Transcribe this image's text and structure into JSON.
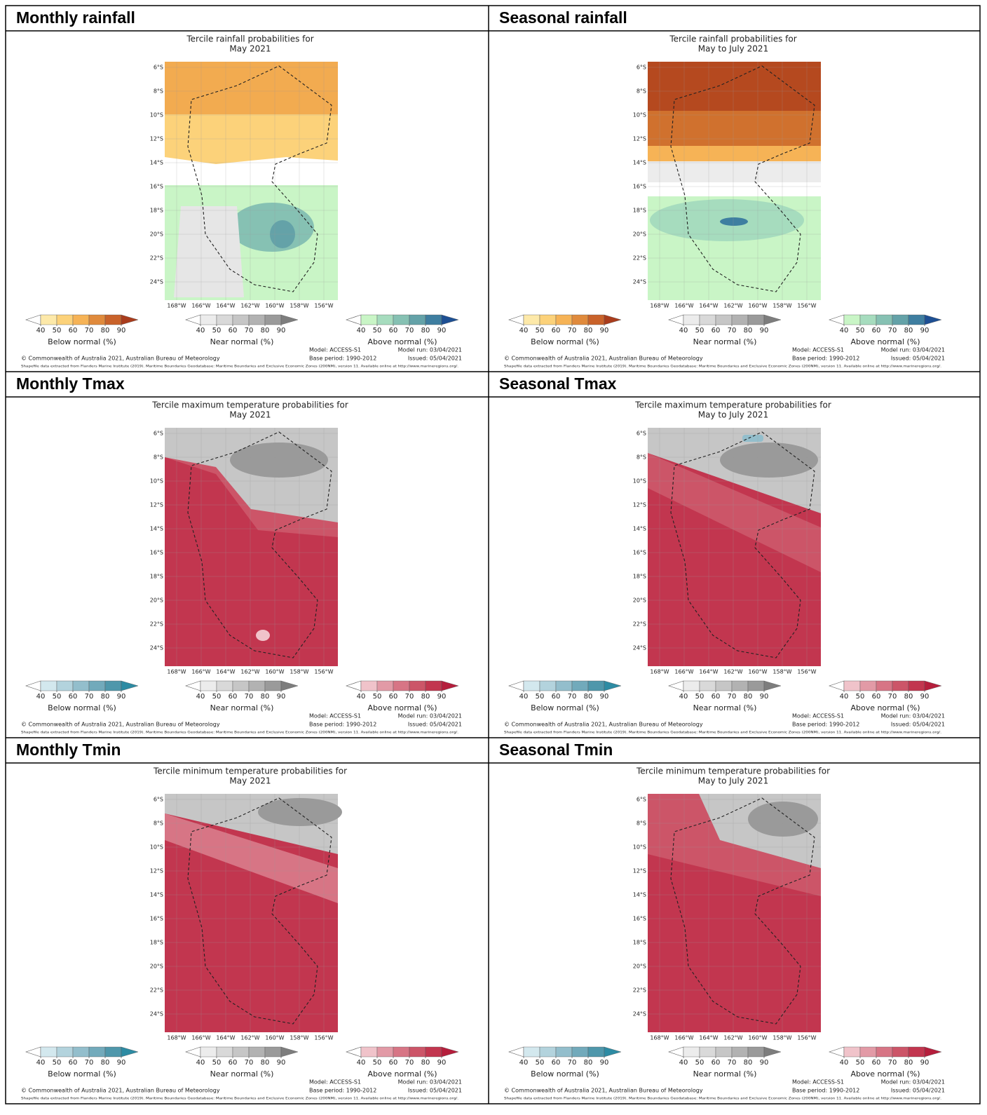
{
  "panels": [
    {
      "heading": "Monthly rainfall",
      "title": [
        "Tercile rainfall probabilities for",
        "May 2021"
      ],
      "colorbars": [
        {
          "label": "Below normal (%)",
          "colors": [
            "#fde9a9",
            "#fcd27a",
            "#f6b356",
            "#e08a3c",
            "#c9622a",
            "#a93c1c"
          ]
        },
        {
          "label": "Near normal (%)",
          "colors": [
            "#ececec",
            "#d9d9d9",
            "#c6c6c6",
            "#b2b2b2",
            "#9a9a9a",
            "#7d7d7d"
          ]
        },
        {
          "label": "Above normal (%)",
          "colors": [
            "#c9f5c6",
            "#a6dcbe",
            "#86c1b3",
            "#64a2a8",
            "#3e7ea0",
            "#1d4f93"
          ]
        }
      ]
    },
    {
      "heading": "Seasonal rainfall",
      "title": [
        "Tercile rainfall probabilities for",
        "May to July 2021"
      ],
      "colorbars": [
        {
          "label": "Below normal (%)",
          "colors": [
            "#fde9a9",
            "#fcd27a",
            "#f6b356",
            "#e08a3c",
            "#c9622a",
            "#a93c1c"
          ]
        },
        {
          "label": "Near normal (%)",
          "colors": [
            "#ececec",
            "#d9d9d9",
            "#c6c6c6",
            "#b2b2b2",
            "#9a9a9a",
            "#7d7d7d"
          ]
        },
        {
          "label": "Above normal (%)",
          "colors": [
            "#c9f5c6",
            "#a6dcbe",
            "#86c1b3",
            "#64a2a8",
            "#3e7ea0",
            "#1d4f93"
          ]
        }
      ]
    },
    {
      "heading": "Monthly Tmax",
      "title": [
        "Tercile maximum temperature probabilities for",
        "May 2021"
      ],
      "colorbars": [
        {
          "label": "Below normal (%)",
          "colors": [
            "#d3e8ee",
            "#b3d3dd",
            "#93becc",
            "#72aabb",
            "#4f97ab",
            "#2d8ba3"
          ]
        },
        {
          "label": "Near normal (%)",
          "colors": [
            "#ececec",
            "#d9d9d9",
            "#c6c6c6",
            "#b2b2b2",
            "#9a9a9a",
            "#7d7d7d"
          ]
        },
        {
          "label": "Above normal (%)",
          "colors": [
            "#f0c3ca",
            "#e29aa6",
            "#d77585",
            "#cc5568",
            "#c2364f",
            "#b51e3c"
          ]
        }
      ]
    },
    {
      "heading": "Seasonal Tmax",
      "title": [
        "Tercile maximum temperature probabilities for",
        "May to July 2021"
      ],
      "colorbars": [
        {
          "label": "Below normal (%)",
          "colors": [
            "#d3e8ee",
            "#b3d3dd",
            "#93becc",
            "#72aabb",
            "#4f97ab",
            "#2d8ba3"
          ]
        },
        {
          "label": "Near normal (%)",
          "colors": [
            "#ececec",
            "#d9d9d9",
            "#c6c6c6",
            "#b2b2b2",
            "#9a9a9a",
            "#7d7d7d"
          ]
        },
        {
          "label": "Above normal (%)",
          "colors": [
            "#f0c3ca",
            "#e29aa6",
            "#d77585",
            "#cc5568",
            "#c2364f",
            "#b51e3c"
          ]
        }
      ]
    },
    {
      "heading": "Monthly Tmin",
      "title": [
        "Tercile minimum temperature probabilities for",
        "May 2021"
      ],
      "colorbars": [
        {
          "label": "Below normal (%)",
          "colors": [
            "#d3e8ee",
            "#b3d3dd",
            "#93becc",
            "#72aabb",
            "#4f97ab",
            "#2d8ba3"
          ]
        },
        {
          "label": "Near normal (%)",
          "colors": [
            "#ececec",
            "#d9d9d9",
            "#c6c6c6",
            "#b2b2b2",
            "#9a9a9a",
            "#7d7d7d"
          ]
        },
        {
          "label": "Above normal (%)",
          "colors": [
            "#f0c3ca",
            "#e29aa6",
            "#d77585",
            "#cc5568",
            "#c2364f",
            "#b51e3c"
          ]
        }
      ]
    },
    {
      "heading": "Seasonal Tmin",
      "title": [
        "Tercile minimum temperature probabilities for",
        "May to July 2021"
      ],
      "colorbars": [
        {
          "label": "Below normal (%)",
          "colors": [
            "#d3e8ee",
            "#b3d3dd",
            "#93becc",
            "#72aabb",
            "#4f97ab",
            "#2d8ba3"
          ]
        },
        {
          "label": "Near normal (%)",
          "colors": [
            "#ececec",
            "#d9d9d9",
            "#c6c6c6",
            "#b2b2b2",
            "#9a9a9a",
            "#7d7d7d"
          ]
        },
        {
          "label": "Above normal (%)",
          "colors": [
            "#f0c3ca",
            "#e29aa6",
            "#d77585",
            "#cc5568",
            "#c2364f",
            "#b51e3c"
          ]
        }
      ]
    }
  ],
  "common": {
    "lat_ticks": [
      "6°S",
      "8°S",
      "10°S",
      "12°S",
      "14°S",
      "16°S",
      "18°S",
      "20°S",
      "22°S",
      "24°S"
    ],
    "lon_ticks": [
      "168°W",
      "166°W",
      "164°W",
      "162°W",
      "160°W",
      "158°W",
      "156°W"
    ],
    "colorbar_ticks": [
      40,
      50,
      60,
      70,
      80,
      90
    ],
    "footer": {
      "model": "Model: ACCESS-S1",
      "model_run": "Model run: 03/04/2021",
      "base_period": "Base period: 1990-2012",
      "issued": "Issued: 05/04/2021",
      "copyright": "© Commonwealth of Australia 2021, Australian Bureau of Meteorology",
      "shapefile": "Shapefile data extracted from Flanders Marine Institute (2019). Maritime Boundaries Geodatabase: Maritime Boundaries and Exclusive Economic Zones (200NM), version 11. Available online at http://www.marineregions.org/."
    }
  }
}
